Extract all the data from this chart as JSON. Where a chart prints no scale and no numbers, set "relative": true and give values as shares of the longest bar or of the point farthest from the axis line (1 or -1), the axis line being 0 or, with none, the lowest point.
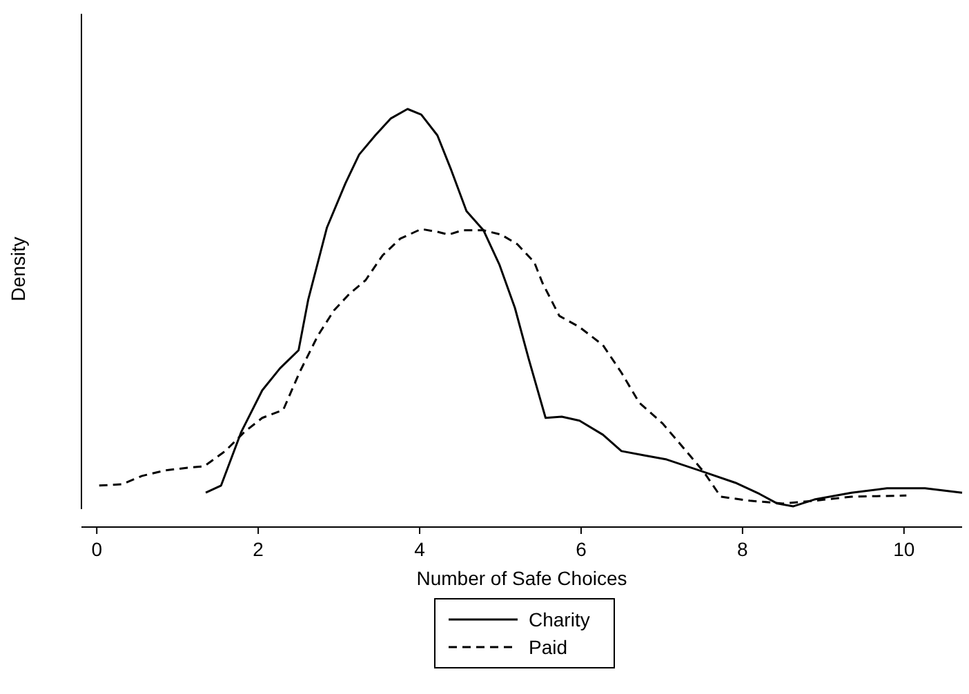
{
  "chart_data": {
    "type": "line",
    "xlabel": "Number of Safe Choices",
    "ylabel": "Density",
    "relative": true,
    "xlim": [
      -0.19,
      10.72
    ],
    "xticks": [
      0,
      2,
      4,
      6,
      8,
      10
    ],
    "legend": "bottom",
    "marker": "none",
    "series": [
      {
        "name": "Charity",
        "color": "#000000",
        "line_style": "solid",
        "x": [
          1.35,
          1.54,
          1.79,
          2.05,
          2.27,
          2.5,
          2.62,
          2.85,
          3.08,
          3.25,
          3.45,
          3.64,
          3.85,
          4.02,
          4.22,
          4.39,
          4.58,
          4.79,
          4.99,
          5.18,
          5.35,
          5.56,
          5.76,
          5.98,
          6.27,
          6.5,
          6.79,
          7.06,
          7.52,
          7.91,
          8.21,
          8.43,
          8.63,
          8.89,
          9.35,
          9.79,
          10.26,
          10.72
        ],
        "values": [
          0.041,
          0.059,
          0.193,
          0.297,
          0.352,
          0.397,
          0.524,
          0.703,
          0.814,
          0.886,
          0.934,
          0.976,
          1.0,
          0.986,
          0.934,
          0.848,
          0.745,
          0.697,
          0.61,
          0.503,
          0.376,
          0.228,
          0.231,
          0.221,
          0.186,
          0.145,
          0.134,
          0.124,
          0.093,
          0.066,
          0.038,
          0.014,
          0.007,
          0.024,
          0.041,
          0.052,
          0.052,
          0.041
        ]
      },
      {
        "name": "Paid",
        "color": "#000000",
        "line_style": "dashed",
        "x": [
          0.03,
          0.31,
          0.56,
          0.85,
          1.11,
          1.33,
          1.59,
          1.83,
          2.05,
          2.31,
          2.51,
          2.74,
          2.94,
          3.13,
          3.33,
          3.54,
          3.76,
          4.02,
          4.22,
          4.36,
          4.53,
          4.79,
          5.01,
          5.21,
          5.42,
          5.52,
          5.73,
          5.98,
          6.27,
          6.5,
          6.72,
          7.01,
          7.23,
          7.52,
          7.73,
          8.09,
          8.5,
          8.89,
          9.35,
          10.03
        ],
        "values": [
          0.059,
          0.062,
          0.083,
          0.097,
          0.103,
          0.107,
          0.145,
          0.193,
          0.228,
          0.248,
          0.341,
          0.434,
          0.497,
          0.538,
          0.572,
          0.634,
          0.676,
          0.7,
          0.693,
          0.686,
          0.697,
          0.697,
          0.686,
          0.662,
          0.617,
          0.566,
          0.483,
          0.455,
          0.41,
          0.341,
          0.266,
          0.214,
          0.162,
          0.093,
          0.031,
          0.021,
          0.014,
          0.021,
          0.031,
          0.034
        ]
      }
    ]
  }
}
